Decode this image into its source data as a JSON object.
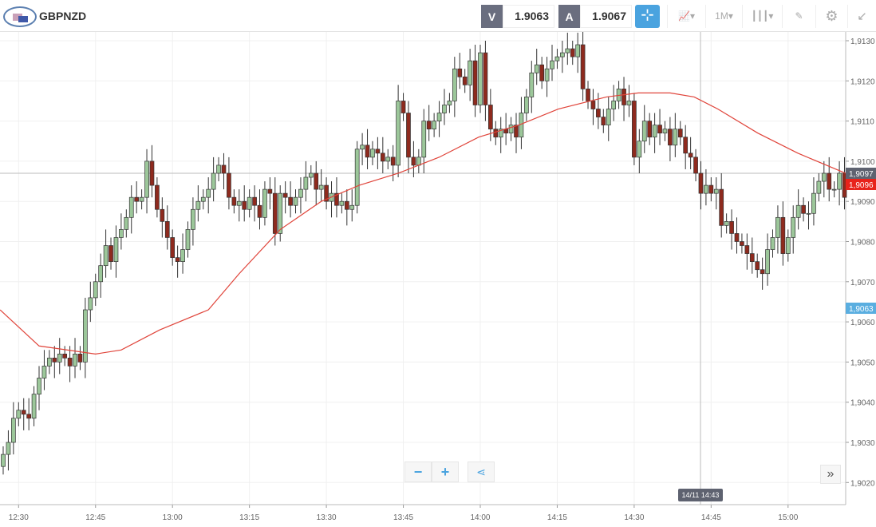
{
  "header": {
    "symbol": "GBPNZD",
    "flag": "gbp-nzd-flag-icon",
    "sell_label": "V",
    "sell_price": "1.9063",
    "buy_label": "A",
    "buy_price": "1.9067",
    "timeframe": "1M"
  },
  "colors": {
    "up": "#9cc79a",
    "down": "#8e2a1e",
    "ma": "#e0443a",
    "crosshair_label": "#5e6270",
    "current_price": "#e8231b",
    "bid_label": "#5aaee0"
  },
  "axis": {
    "price_ticks": [
      "1,9130",
      "1,9120",
      "1,9110",
      "1,9100",
      "1,9090",
      "1,9080",
      "1,9070",
      "1,9060",
      "1,9050",
      "1,9040",
      "1,9030",
      "1,9020"
    ],
    "price_values": [
      1.913,
      1.912,
      1.911,
      1.91,
      1.909,
      1.908,
      1.907,
      1.906,
      1.905,
      1.904,
      1.903,
      1.902
    ],
    "time_ticks": [
      "12:30",
      "12:45",
      "13:00",
      "13:15",
      "13:30",
      "13:45",
      "14:00",
      "14:15",
      "14:30",
      "14:45",
      "15:00"
    ],
    "time_index": [
      3,
      18,
      33,
      48,
      63,
      78,
      93,
      108,
      123,
      138,
      153
    ]
  },
  "labels": {
    "crosshair_price": "1,9097",
    "current_price": "1,9096",
    "bid_price": "1,9063",
    "crosshair_time": "14/11 14:43"
  },
  "chart_data": {
    "type": "candlestick",
    "timeframe": "1M",
    "start_open": 1.9024,
    "closes": [
      1.9027,
      1.903,
      1.9036,
      1.9038,
      1.9037,
      1.9036,
      1.9042,
      1.9046,
      1.9049,
      1.9051,
      1.905,
      1.9052,
      1.9051,
      1.9049,
      1.9052,
      1.905,
      1.9063,
      1.9066,
      1.907,
      1.9074,
      1.9079,
      1.9075,
      1.9081,
      1.9083,
      1.9086,
      1.9091,
      1.909,
      1.9091,
      1.91,
      1.9094,
      1.9088,
      1.9085,
      1.9081,
      1.9076,
      1.9075,
      1.9078,
      1.9083,
      1.9088,
      1.909,
      1.9091,
      1.9093,
      1.9097,
      1.9099,
      1.9097,
      1.9091,
      1.9089,
      1.909,
      1.9088,
      1.9091,
      1.9089,
      1.9086,
      1.9093,
      1.9092,
      1.9082,
      1.9092,
      1.9091,
      1.9089,
      1.9091,
      1.9093,
      1.9096,
      1.9097,
      1.9093,
      1.9094,
      1.909,
      1.9092,
      1.9089,
      1.909,
      1.9088,
      1.9089,
      1.9103,
      1.9104,
      1.9101,
      1.9103,
      1.9102,
      1.91,
      1.9101,
      1.9099,
      1.9115,
      1.9112,
      1.9101,
      1.9099,
      1.9101,
      1.911,
      1.9108,
      1.911,
      1.9112,
      1.9114,
      1.9115,
      1.9123,
      1.9121,
      1.9119,
      1.9125,
      1.9114,
      1.9127,
      1.9114,
      1.9108,
      1.9106,
      1.9108,
      1.9107,
      1.9109,
      1.9106,
      1.9112,
      1.9116,
      1.9122,
      1.9124,
      1.912,
      1.9123,
      1.9125,
      1.9126,
      1.9127,
      1.9128,
      1.9126,
      1.9129,
      1.9118,
      1.9115,
      1.9113,
      1.9111,
      1.9109,
      1.9113,
      1.9115,
      1.9118,
      1.9114,
      1.9115,
      1.9101,
      1.9105,
      1.911,
      1.9106,
      1.9109,
      1.9107,
      1.9108,
      1.9104,
      1.9108,
      1.9106,
      1.9102,
      1.9101,
      1.9097,
      1.9092,
      1.9094,
      1.9092,
      1.9093,
      1.9084,
      1.9085,
      1.9082,
      1.908,
      1.9079,
      1.9077,
      1.9075,
      1.9073,
      1.9072,
      1.9078,
      1.9081,
      1.9086,
      1.9077,
      1.9081,
      1.9086,
      1.9089,
      1.9087,
      1.9087,
      1.9092,
      1.9095,
      1.9097,
      1.9093,
      1.9093,
      1.9097,
      1.9091
    ],
    "moving_average": [
      [
        -0.6,
        1.9063
      ],
      [
        7,
        1.9054
      ],
      [
        18,
        1.9052
      ],
      [
        23,
        1.9053
      ],
      [
        30.5,
        1.9058
      ],
      [
        40,
        1.9063
      ],
      [
        46,
        1.9072
      ],
      [
        54,
        1.9083
      ],
      [
        62,
        1.909
      ],
      [
        69.4,
        1.9094
      ],
      [
        77,
        1.9097
      ],
      [
        85,
        1.9101
      ],
      [
        92.7,
        1.9106
      ],
      [
        100.5,
        1.9109
      ],
      [
        108.2,
        1.9113
      ],
      [
        117.6,
        1.9116
      ],
      [
        123.8,
        1.9117
      ],
      [
        130,
        1.9117
      ],
      [
        134.7,
        1.9116
      ],
      [
        139.3,
        1.9113
      ],
      [
        147.1,
        1.9107
      ],
      [
        154.9,
        1.9102
      ],
      [
        164.2,
        1.9097
      ]
    ]
  }
}
